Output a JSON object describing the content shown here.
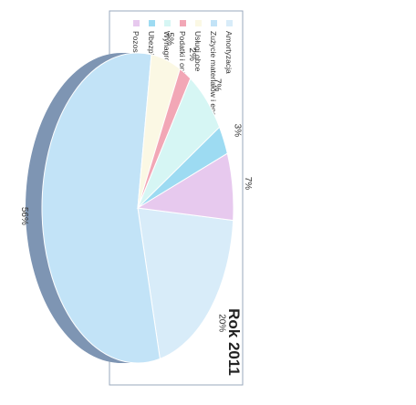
{
  "chart_data": {
    "type": "pie",
    "title": "Rok 2011",
    "categories": [
      "Amortyzacja",
      "Zużycie materiałów i energii",
      "Usługi obce",
      "Podatki i opłaty",
      "Wynagrodzenia",
      "Ubezpieczenia społeczne i inne świadczenia",
      "Pozostałe koszty rodzajowe"
    ],
    "values": [
      20,
      56,
      5,
      2,
      7,
      3,
      7
    ],
    "data_labels": [
      "20%",
      "56%",
      "5%",
      "2%",
      "7%",
      "3%",
      "7%"
    ],
    "colors": [
      "#d8ecf9",
      "#c2e3f7",
      "#fbf8e4",
      "#f2a7b6",
      "#d6f6f4",
      "#9ddbf2",
      "#e7c9ee"
    ],
    "side_color": "#7e95b3",
    "legend_position": "right",
    "rotated": "90deg clockwise"
  }
}
